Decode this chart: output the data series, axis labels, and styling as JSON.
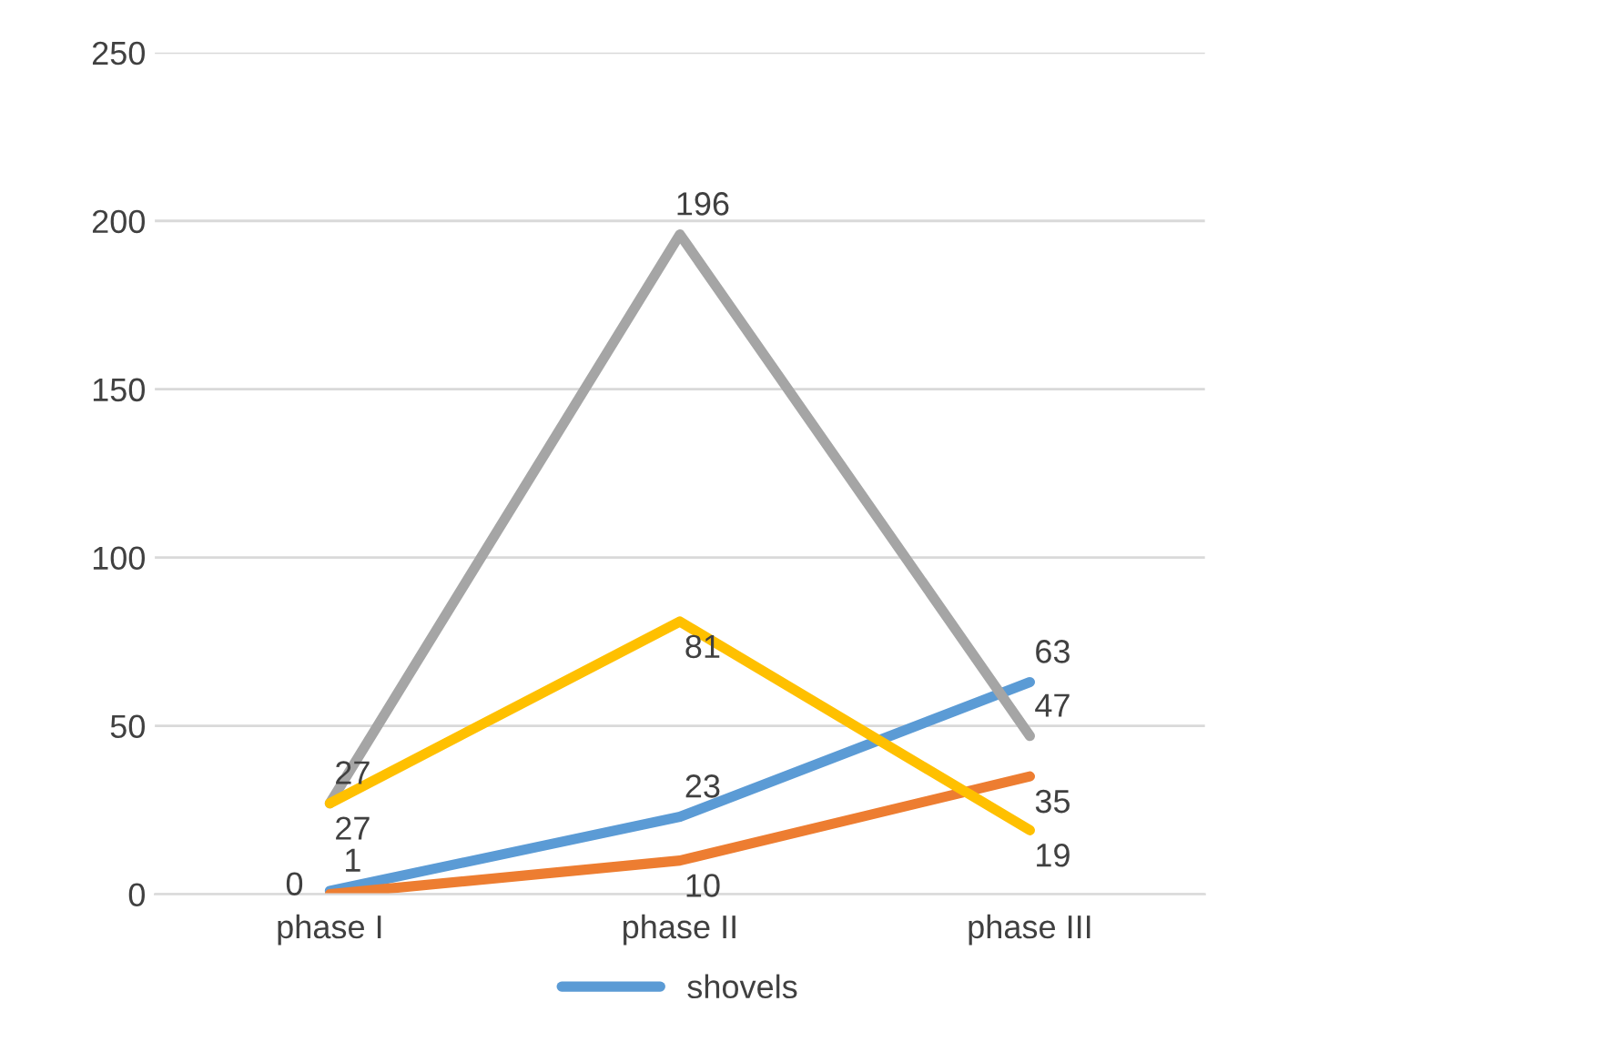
{
  "chart_data": {
    "type": "line",
    "categories": [
      "phase I",
      "phase II",
      "phase III"
    ],
    "series": [
      {
        "name": "shovels",
        "color": "#5b9bd5",
        "values": [
          1,
          23,
          63
        ]
      },
      {
        "color": "#ed7d31",
        "values": [
          0,
          10,
          35
        ]
      },
      {
        "color": "#a5a5a5",
        "values": [
          27,
          196,
          47
        ]
      },
      {
        "color": "#ffc000",
        "values": [
          27,
          81,
          19
        ]
      }
    ],
    "ylim": [
      0,
      250
    ],
    "yticks": [
      0,
      50,
      100,
      150,
      200,
      250
    ],
    "grid": "y",
    "legend": "bottom",
    "data_labels": true,
    "marker": "none",
    "line_style": "solid"
  }
}
